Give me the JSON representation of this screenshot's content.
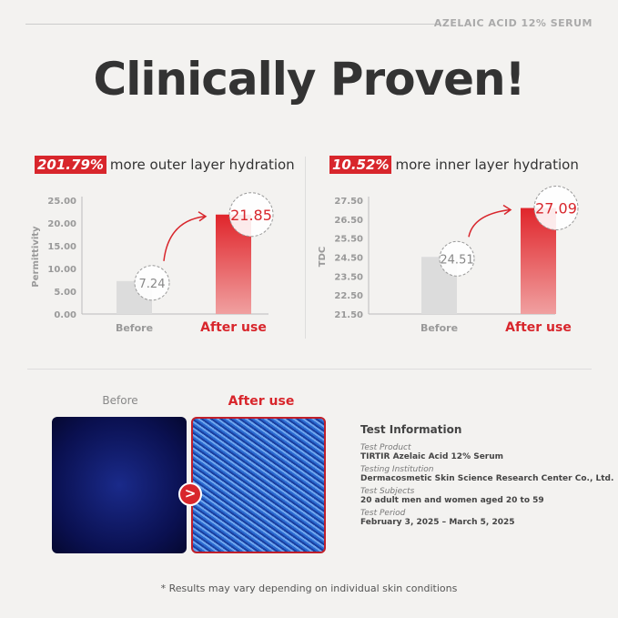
{
  "brand": "AZELAIC ACID 12% SERUM",
  "title": "Clinically Proven!",
  "chart_data": [
    {
      "type": "bar",
      "highlight": "201.79%",
      "headline": "more outer layer hydration",
      "ylabel": "Permittivity",
      "ylim": [
        0,
        25
      ],
      "ticks": [
        "0.00",
        "5.00",
        "10.00",
        "15.00",
        "20.00",
        "25.00"
      ],
      "categories": [
        "Before",
        "After use"
      ],
      "values": [
        7.24,
        21.85
      ],
      "labels": [
        "7.24",
        "21.85"
      ]
    },
    {
      "type": "bar",
      "highlight": "10.52%",
      "headline": "more inner layer hydration",
      "ylabel": "TDC",
      "ylim": [
        21.5,
        27.5
      ],
      "ticks": [
        "21.50",
        "22.50",
        "23.50",
        "24.50",
        "25.50",
        "26.50",
        "27.50"
      ],
      "categories": [
        "Before",
        "After use"
      ],
      "values": [
        24.51,
        27.09
      ],
      "labels": [
        "24.51",
        "27.09"
      ]
    }
  ],
  "colors": {
    "accent": "#d8262c",
    "before_bar": "#dcdcdc"
  },
  "images": {
    "before_label": "Before",
    "after_label": "After use"
  },
  "info": {
    "title": "Test Information",
    "items": [
      {
        "key": "Test Product",
        "value": "TIRTIR Azelaic Acid 12% Serum"
      },
      {
        "key": "Testing Institution",
        "value": "Dermacosmetic Skin Science Research Center Co., Ltd."
      },
      {
        "key": "Test Subjects",
        "value": "20 adult men and women aged 20 to 59"
      },
      {
        "key": "Test Period",
        "value": "February 3, 2025 – March 5, 2025"
      }
    ]
  },
  "footnote": "* Results may vary depending on individual skin conditions"
}
